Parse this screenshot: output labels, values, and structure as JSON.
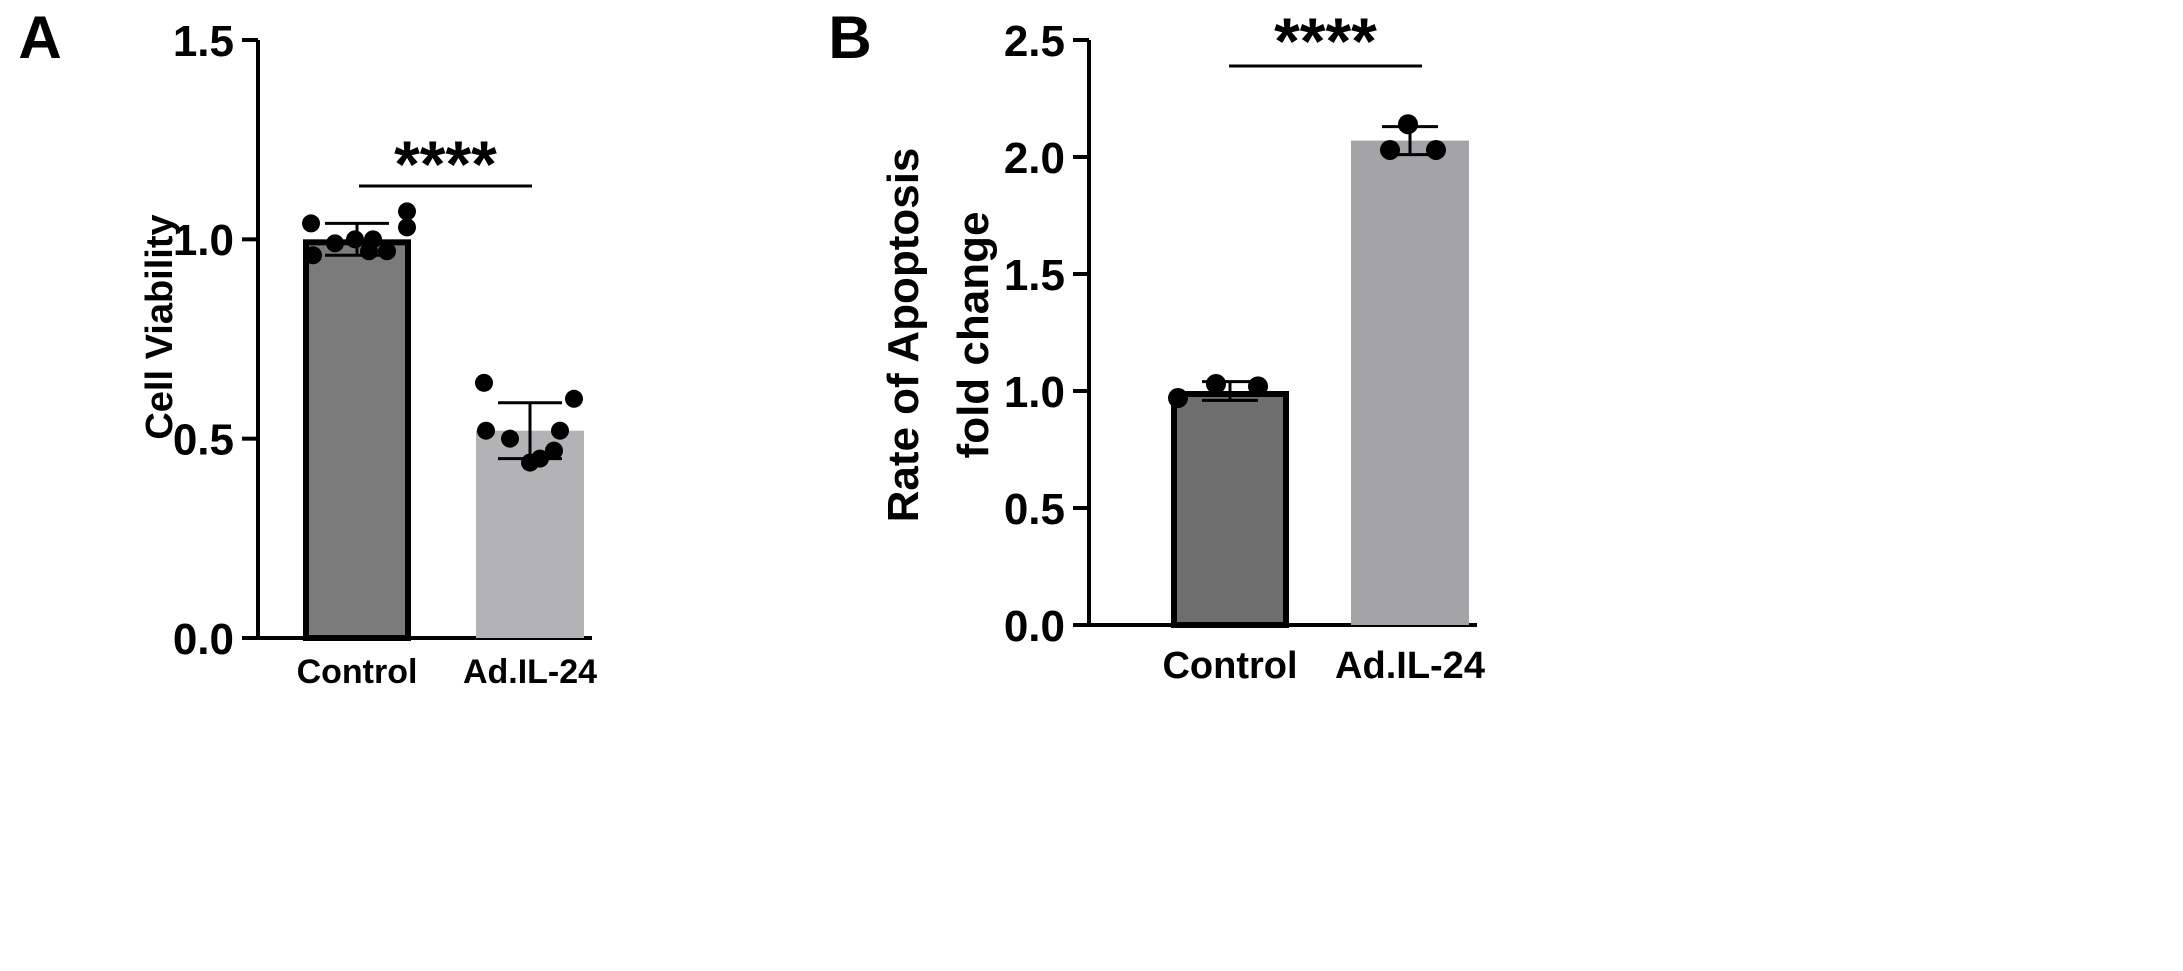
{
  "chart_data": [
    {
      "panel_label": "A",
      "type": "bar",
      "categories": [
        "Control",
        "Ad.IL-24"
      ],
      "values": [
        1.0,
        0.52
      ],
      "error": [
        0.04,
        0.07
      ],
      "points": [
        [
          0.96,
          0.99,
          1.0,
          1.0,
          0.97,
          1.03,
          1.04,
          0.97,
          1.07
        ],
        [
          0.52,
          0.5,
          0.44,
          0.45,
          0.52,
          0.6,
          0.64,
          0.47
        ]
      ],
      "ylabel": "Cell Viability",
      "ylim": [
        0,
        1.5
      ],
      "yticks": [
        "0.0",
        "0.5",
        "1.0",
        "1.5"
      ],
      "significance": "****",
      "bar_colors": [
        "#7b7b7b",
        "#b3b3b6"
      ],
      "bar_outline": [
        true,
        false
      ]
    },
    {
      "panel_label": "B",
      "type": "bar",
      "categories": [
        "Control",
        "Ad.IL-24"
      ],
      "values": [
        1.0,
        2.07
      ],
      "error": [
        0.04,
        0.06
      ],
      "points": [
        [
          0.97,
          1.03,
          1.02
        ],
        [
          2.03,
          2.14,
          2.03
        ]
      ],
      "ylabel": "Rate of Apoptosis fold change",
      "ylabel_lines": [
        "Rate of Apoptosis",
        "fold change"
      ],
      "ylim": [
        0,
        2.5
      ],
      "yticks": [
        "0.0",
        "0.5",
        "1.0",
        "1.5",
        "2.0",
        "2.5"
      ],
      "significance": "****",
      "bar_colors": [
        "#6e6e6e",
        "#a4a4a7"
      ],
      "bar_outline": [
        true,
        false
      ]
    }
  ]
}
